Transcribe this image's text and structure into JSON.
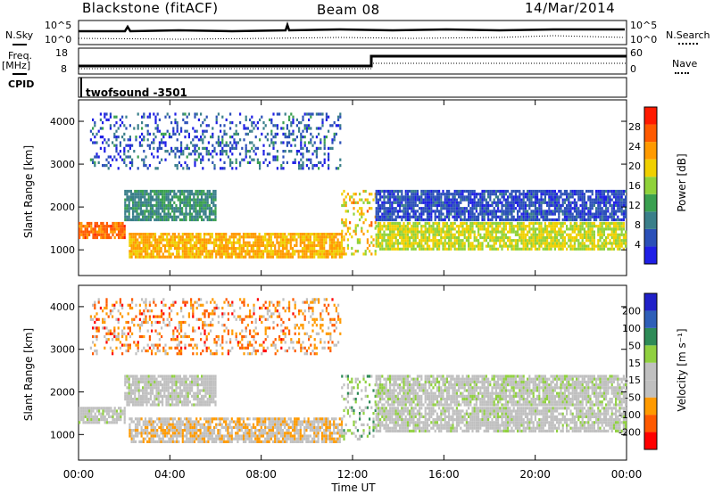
{
  "header": {
    "station": "Blackstone (fitACF)",
    "beam": "Beam 08",
    "date": "14/Mar/2014"
  },
  "top_panels": {
    "nsky_label": "N.Sky",
    "nsearch_label": "N.Search",
    "noise_ticks": [
      "10^5",
      "10^0"
    ],
    "freq_label": "Freq.",
    "freq_unit": "[MHz]",
    "freq_ticks": [
      "18",
      "8"
    ],
    "nave_label": "Nave",
    "nave_ticks": [
      "60",
      "0"
    ],
    "cpid_label": "CPID",
    "cpid_value": "twofsound -3501"
  },
  "colors": {
    "power_scale": [
      "#1f1fe6",
      "#2b50b8",
      "#3a7f8a",
      "#3aa050",
      "#8fd23a",
      "#f0d000",
      "#ff9a00",
      "#ff5a00",
      "#ff1a00"
    ],
    "velocity_scale": [
      "#ff0000",
      "#ff5a00",
      "#ff9a00",
      "#c0c0c0",
      "#c0c0c0",
      "#90d040",
      "#2e8b57",
      "#2e5fb8",
      "#2020c8"
    ]
  },
  "chart_data": [
    {
      "type": "heatmap",
      "name": "power",
      "ylabel": "Slant Range [km]",
      "yticks": [
        "4000",
        "3000",
        "2000",
        "1000"
      ],
      "ylim": [
        400,
        4500
      ],
      "xticks": [
        "00:00",
        "04:00",
        "08:00",
        "12:00",
        "16:00",
        "20:00",
        "00:00"
      ],
      "xlim": [
        0,
        24
      ],
      "colorbar_label": "Power [dB]",
      "colorbar_ticks": [
        "28",
        "24",
        "20",
        "16",
        "12",
        "8",
        "4"
      ],
      "colorbar_range": [
        0,
        32
      ],
      "bands": [
        {
          "t0": 0.0,
          "t1": 2.0,
          "r0": 1300,
          "r1": 1650,
          "level": 26
        },
        {
          "t0": 2.0,
          "t1": 6.0,
          "r0": 1700,
          "r1": 2400,
          "level": 10
        },
        {
          "t0": 2.2,
          "t1": 11.5,
          "r0": 850,
          "r1": 1400,
          "level": 22
        },
        {
          "t0": 11.5,
          "t1": 13.0,
          "r0": 900,
          "r1": 2400,
          "level": 20
        },
        {
          "t0": 13.0,
          "t1": 24.0,
          "r0": 1050,
          "r1": 1650,
          "level": 18
        },
        {
          "t0": 0.5,
          "t1": 11.5,
          "r0": 2900,
          "r1": 4200,
          "level": 6
        },
        {
          "t0": 13.0,
          "t1": 24.0,
          "r0": 1700,
          "r1": 2400,
          "level": 5
        }
      ]
    },
    {
      "type": "heatmap",
      "name": "velocity",
      "ylabel": "Slant Range [km]",
      "yticks": [
        "4000",
        "3000",
        "2000",
        "1000"
      ],
      "ylim": [
        400,
        4500
      ],
      "xticks": [
        "00:00",
        "04:00",
        "08:00",
        "12:00",
        "16:00",
        "20:00",
        "00:00"
      ],
      "xlim": [
        0,
        24
      ],
      "xlabel": "Time UT",
      "colorbar_label": "Velocity [m s⁻¹]",
      "colorbar_ticks": [
        "200",
        "100",
        "50",
        "15",
        "-15",
        "-50",
        "-100",
        "-200"
      ],
      "colorbar_range": [
        -250,
        250
      ],
      "bands": [
        {
          "t0": 0.0,
          "t1": 2.0,
          "r0": 1250,
          "r1": 1650,
          "level": -5
        },
        {
          "t0": 2.0,
          "t1": 6.0,
          "r0": 1700,
          "r1": 2400,
          "level": -10
        },
        {
          "t0": 2.2,
          "t1": 11.5,
          "r0": 850,
          "r1": 1400,
          "level": -70
        },
        {
          "t0": 11.5,
          "t1": 13.0,
          "r0": 900,
          "r1": 2400,
          "level": 30
        },
        {
          "t0": 13.0,
          "t1": 24.0,
          "r0": 1050,
          "r1": 1650,
          "level": -5
        },
        {
          "t0": 0.5,
          "t1": 11.5,
          "r0": 2900,
          "r1": 4200,
          "level": -120
        },
        {
          "t0": 13.0,
          "t1": 24.0,
          "r0": 1700,
          "r1": 2400,
          "level": 0
        }
      ]
    }
  ]
}
